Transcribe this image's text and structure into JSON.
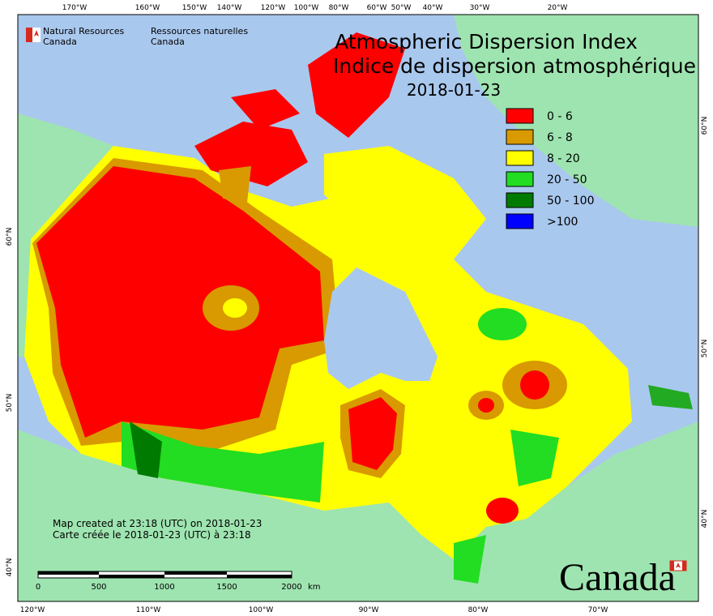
{
  "logo": {
    "english": [
      "Natural Resources",
      "Canada"
    ],
    "french": [
      "Ressources naturelles",
      "Canada"
    ]
  },
  "title": [
    "Atmospheric Dispersion Index",
    "Indice de dispersion atmosphérique",
    "2018-01-23"
  ],
  "legend": [
    {
      "label": "0 - 6",
      "color": "#ff0000"
    },
    {
      "label": "6 - 8",
      "color": "#d89a00"
    },
    {
      "label": "8 - 20",
      "color": "#ffff00"
    },
    {
      "label": "20 - 50",
      "color": "#22dd22"
    },
    {
      "label": "50 - 100",
      "color": "#007a00"
    },
    {
      "label": ">100",
      "color": "#0000ff"
    }
  ],
  "graticule": {
    "top": [
      "170°W",
      "160°W",
      "150°W",
      "140°W",
      "120°W",
      "100°W",
      "80°W",
      "60°W",
      "50°W",
      "40°W",
      "30°W",
      "20°W"
    ],
    "bottom": [
      "120°W",
      "110°W",
      "100°W",
      "90°W",
      "80°W",
      "70°W"
    ],
    "left": [
      "60°N",
      "50°N",
      "40°N"
    ],
    "right": [
      "60°N",
      "50°N",
      "40°N"
    ]
  },
  "credits": [
    "Map created at 23:18 (UTC) on 2018-01-23",
    "Carte créée le 2018-01-23 (UTC) à 23:18"
  ],
  "scale_bar": {
    "labels": [
      "0",
      "500",
      "1000",
      "1500",
      "2000"
    ],
    "unit": "km"
  },
  "wordmark": "Canada"
}
